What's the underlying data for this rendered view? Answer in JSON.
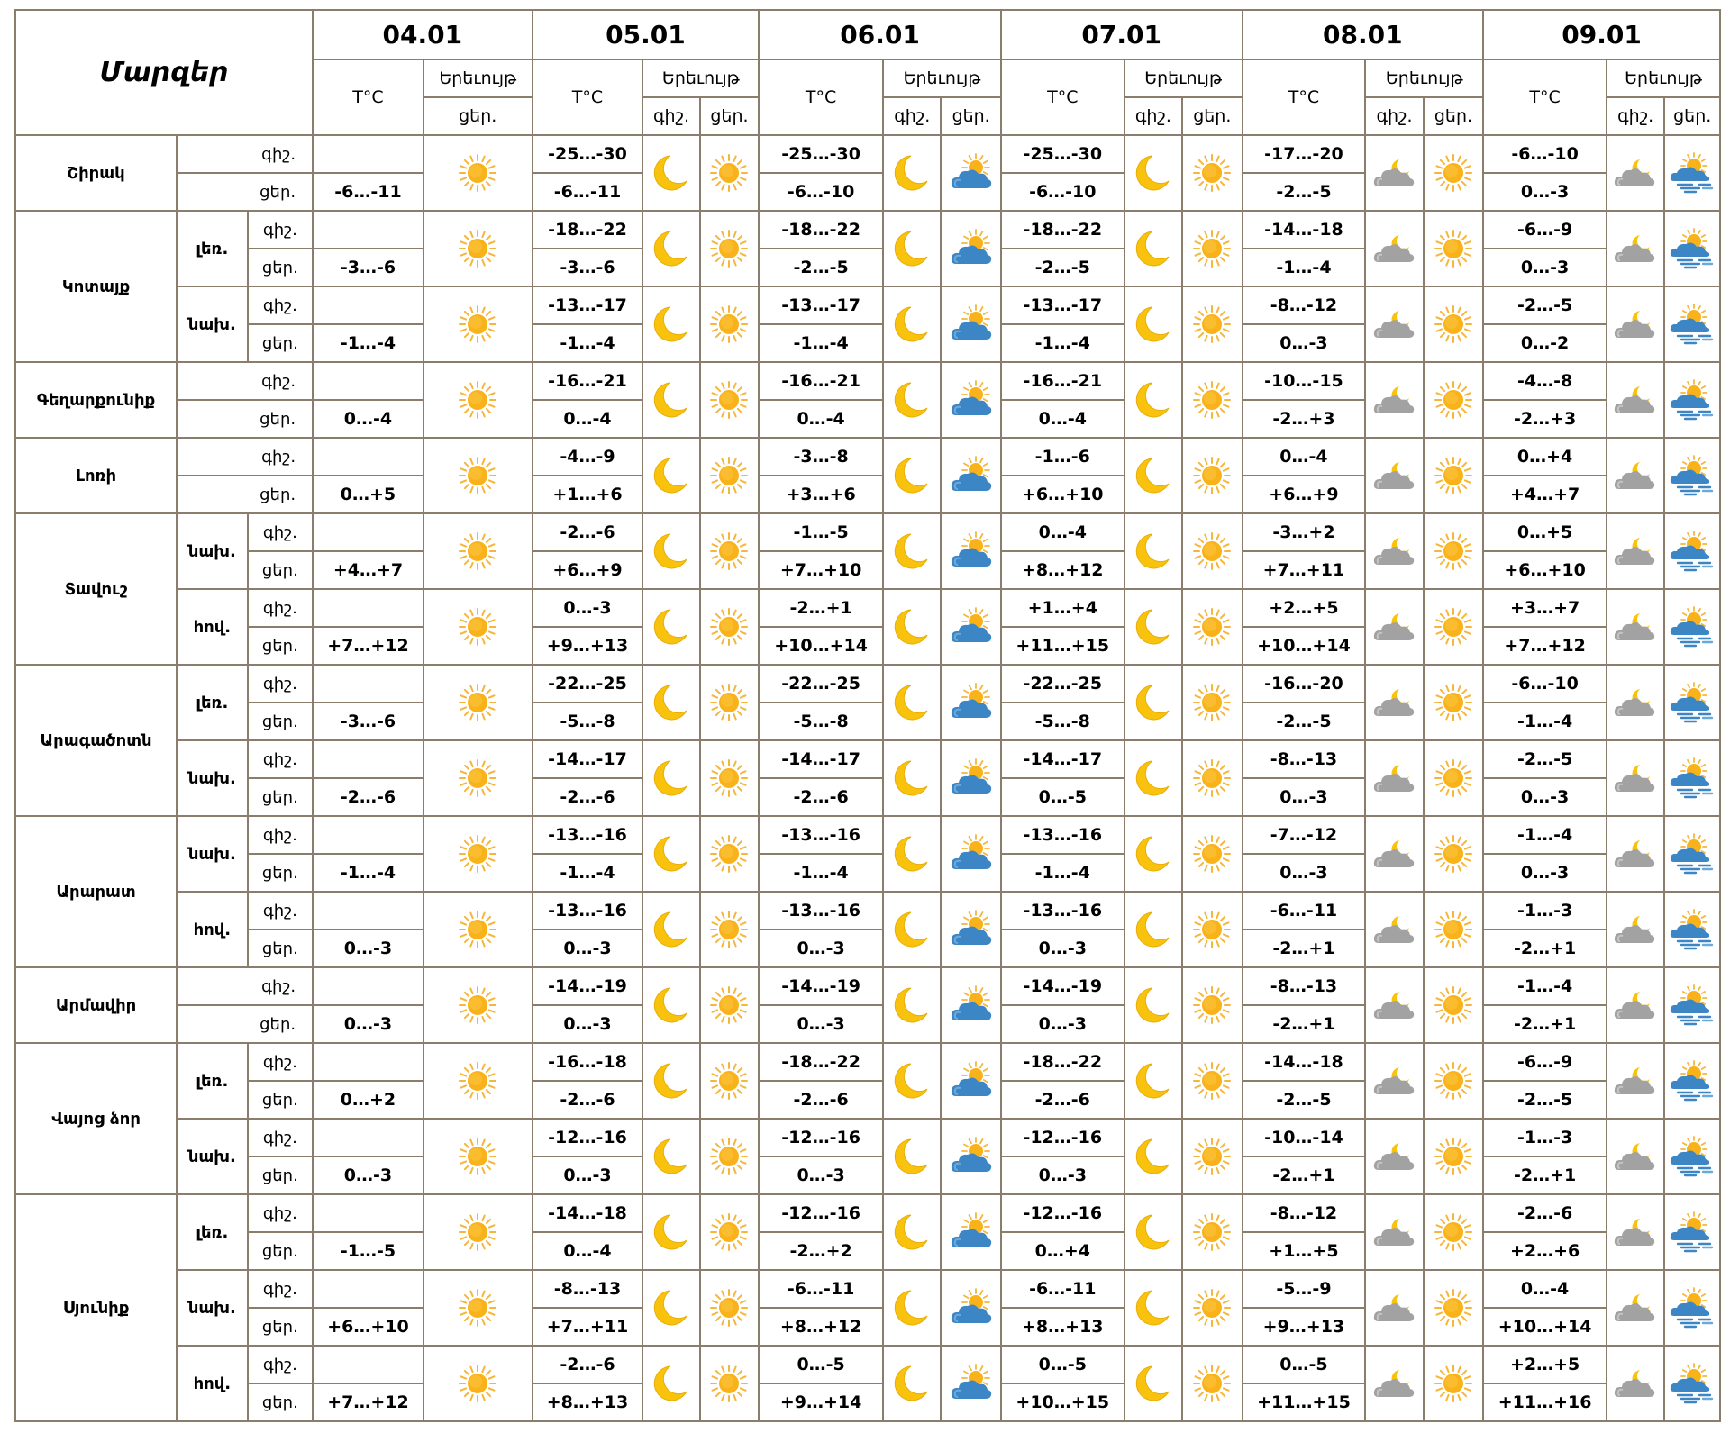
{
  "header": {
    "regions_title": "Մարզեր",
    "dates": [
      "04.01",
      "05.01",
      "06.01",
      "07.01",
      "08.01",
      "09.01"
    ],
    "temp_label": "T°C",
    "phenomenon_label": "Երեւույթ",
    "night_label": "գիշ.",
    "day_label": "ցեր."
  },
  "legend_labels": {
    "mountain": "լեռ.",
    "foothill": "նախ.",
    "plain": "հով."
  },
  "icons": {
    "day0": "sun",
    "night": "moon",
    "d06": "partly-cloudy-sun",
    "d07": "sun",
    "d08": "sun",
    "n08": "cloud-moon",
    "n09": "cloud-moon",
    "d09": "sun-cloud-showers"
  },
  "colors": {
    "border": "#8a7d6b",
    "sun": "#f9b21a",
    "moon": "#f9c30d",
    "cloud_gray": "#a2a2a2",
    "cloud_blue": "#3d86c6"
  },
  "regions": [
    {
      "name": "Շիրակ",
      "rows": [
        {
          "zone": "",
          "nights": [
            "-25…-30",
            "-25…-30",
            "-25…-30",
            "-17…-20",
            "-6…-10"
          ],
          "days": [
            "-6…-11",
            "-6…-11",
            "-6…-10",
            "-6…-10",
            "-2…-5",
            "0…-3"
          ]
        }
      ]
    },
    {
      "name": "Կոտայք",
      "rows": [
        {
          "zone": "լեռ.",
          "nights": [
            "-18…-22",
            "-18…-22",
            "-18…-22",
            "-14…-18",
            "-6…-9"
          ],
          "days": [
            "-3…-6",
            "-3…-6",
            "-2…-5",
            "-2…-5",
            "-1…-4",
            "0…-3"
          ]
        },
        {
          "zone": "նախ.",
          "nights": [
            "-13…-17",
            "-13…-17",
            "-13…-17",
            "-8…-12",
            "-2…-5"
          ],
          "days": [
            "-1…-4",
            "-1…-4",
            "-1…-4",
            "-1…-4",
            "0…-3",
            "0…-2"
          ]
        }
      ]
    },
    {
      "name": "Գեղարքունիք",
      "rows": [
        {
          "zone": "",
          "nights": [
            "-16…-21",
            "-16…-21",
            "-16…-21",
            "-10…-15",
            "-4…-8"
          ],
          "days": [
            "0…-4",
            "0…-4",
            "0…-4",
            "0…-4",
            "-2…+3",
            "-2…+3"
          ]
        }
      ]
    },
    {
      "name": "Լոռի",
      "rows": [
        {
          "zone": "",
          "nights": [
            "-4…-9",
            "-3…-8",
            "-1…-6",
            "0…-4",
            "0…+4"
          ],
          "days": [
            "0…+5",
            "+1…+6",
            "+3…+6",
            "+6…+10",
            "+6…+9",
            "+4…+7"
          ]
        }
      ]
    },
    {
      "name": "Տավուշ",
      "rows": [
        {
          "zone": "նախ.",
          "nights": [
            "-2…-6",
            "-1…-5",
            "0…-4",
            "-3…+2",
            "0…+5"
          ],
          "days": [
            "+4…+7",
            "+6…+9",
            "+7…+10",
            "+8…+12",
            "+7…+11",
            "+6…+10"
          ]
        },
        {
          "zone": "հով.",
          "nights": [
            "0…-3",
            "-2…+1",
            "+1…+4",
            "+2…+5",
            "+3…+7"
          ],
          "days": [
            "+7…+12",
            "+9…+13",
            "+10…+14",
            "+11…+15",
            "+10…+14",
            "+7…+12"
          ]
        }
      ]
    },
    {
      "name": "Արագածոտն",
      "rows": [
        {
          "zone": "լեռ.",
          "nights": [
            "-22…-25",
            "-22…-25",
            "-22…-25",
            "-16…-20",
            "-6…-10"
          ],
          "days": [
            "-3…-6",
            "-5…-8",
            "-5…-8",
            "-5…-8",
            "-2…-5",
            "-1…-4"
          ]
        },
        {
          "zone": "նախ.",
          "nights": [
            "-14…-17",
            "-14…-17",
            "-14…-17",
            "-8…-13",
            "-2…-5"
          ],
          "days": [
            "-2…-6",
            "-2…-6",
            "-2…-6",
            "0…-5",
            "0…-3",
            "0…-3"
          ]
        }
      ]
    },
    {
      "name": "Արարատ",
      "rows": [
        {
          "zone": "նախ.",
          "nights": [
            "-13…-16",
            "-13…-16",
            "-13…-16",
            "-7…-12",
            "-1…-4"
          ],
          "days": [
            "-1…-4",
            "-1…-4",
            "-1…-4",
            "-1…-4",
            "0…-3",
            "0…-3"
          ]
        },
        {
          "zone": "հով.",
          "nights": [
            "-13…-16",
            "-13…-16",
            "-13…-16",
            "-6…-11",
            "-1…-3"
          ],
          "days": [
            "0…-3",
            "0…-3",
            "0…-3",
            "0…-3",
            "-2…+1",
            "-2…+1"
          ]
        }
      ]
    },
    {
      "name": "Արմավիր",
      "rows": [
        {
          "zone": "",
          "nights": [
            "-14…-19",
            "-14…-19",
            "-14…-19",
            "-8…-13",
            "-1…-4"
          ],
          "days": [
            "0…-3",
            "0…-3",
            "0…-3",
            "0…-3",
            "-2…+1",
            "-2…+1"
          ]
        }
      ]
    },
    {
      "name": "Վայոց ձոր",
      "rows": [
        {
          "zone": "լեռ.",
          "nights": [
            "-16…-18",
            "-18…-22",
            "-18…-22",
            "-14…-18",
            "-6…-9"
          ],
          "days": [
            "0…+2",
            "-2…-6",
            "-2…-6",
            "-2…-6",
            "-2…-5",
            "-2…-5"
          ]
        },
        {
          "zone": "նախ.",
          "nights": [
            "-12…-16",
            "-12…-16",
            "-12…-16",
            "-10…-14",
            "-1…-3"
          ],
          "days": [
            "0…-3",
            "0…-3",
            "0…-3",
            "0…-3",
            "-2…+1",
            "-2…+1"
          ]
        }
      ]
    },
    {
      "name": "Սյունիք",
      "rows": [
        {
          "zone": "լեռ.",
          "nights": [
            "-14…-18",
            "-12…-16",
            "-12…-16",
            "-8…-12",
            "-2…-6"
          ],
          "days": [
            "-1…-5",
            "0…-4",
            "-2…+2",
            "0…+4",
            "+1…+5",
            "+2…+6"
          ]
        },
        {
          "zone": "նախ.",
          "nights": [
            "-8…-13",
            "-6…-11",
            "-6…-11",
            "-5…-9",
            "0…-4"
          ],
          "days": [
            "+6…+10",
            "+7…+11",
            "+8…+12",
            "+8…+13",
            "+9…+13",
            "+10…+14"
          ]
        },
        {
          "zone": "հով.",
          "nights": [
            "-2…-6",
            "0…-5",
            "0…-5",
            "0…-5",
            "+2…+5"
          ],
          "days": [
            "+7…+12",
            "+8…+13",
            "+9…+14",
            "+10…+15",
            "+11…+15",
            "+11…+16"
          ]
        }
      ]
    }
  ]
}
